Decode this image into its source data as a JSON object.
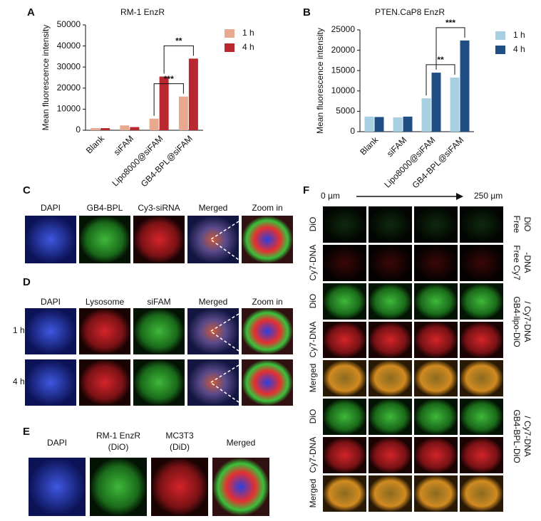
{
  "chart_data": [
    {
      "type": "bar",
      "panel": "A",
      "title": "RM-1 EnzR",
      "y_label": "Mean fluorescence intensity",
      "categories": [
        "Blank",
        "siFAM",
        "Lipo8000@siFAM",
        "GB4-BPL@siFAM"
      ],
      "series": [
        {
          "name": "1 h",
          "color": "#e8a98f",
          "values": [
            1000,
            2300,
            5500,
            16000
          ]
        },
        {
          "name": "4 h",
          "color": "#b8282e",
          "values": [
            1000,
            1500,
            25500,
            34000
          ]
        }
      ],
      "ylim": [
        0,
        50000
      ],
      "yticks": [
        0,
        10000,
        20000,
        30000,
        40000,
        50000
      ],
      "annotations": [
        "***",
        "**"
      ]
    },
    {
      "type": "bar",
      "panel": "B",
      "title": "PTEN.CaP8 EnzR",
      "y_label": "Mean fluorescence intensity",
      "categories": [
        "Blank",
        "siFAM",
        "Lipo8000@siFAM",
        "GB4-BPL@siFAM"
      ],
      "series": [
        {
          "name": "1 h",
          "color": "#a9cfe3",
          "values": [
            3700,
            3500,
            8200,
            13300
          ]
        },
        {
          "name": "4 h",
          "color": "#1f4e85",
          "values": [
            3600,
            3700,
            14500,
            22400
          ]
        }
      ],
      "ylim": [
        0,
        25000
      ],
      "yticks": [
        0,
        5000,
        10000,
        15000,
        20000,
        25000
      ],
      "annotations": [
        "**",
        "***"
      ]
    }
  ],
  "panels": {
    "C": {
      "label": "C",
      "headers": [
        "DAPI",
        "GB4-BPL",
        "Cy3-siRNA",
        "Merged",
        "Zoom in"
      ]
    },
    "D": {
      "label": "D",
      "headers": [
        "DAPI",
        "Lysosome",
        "siFAM",
        "Merged",
        "Zoom in"
      ],
      "rows": [
        "1 h",
        "4 h"
      ]
    },
    "E": {
      "label": "E",
      "headers": [
        [
          "DAPI"
        ],
        [
          "RM-1 EnzR",
          "(DiO)"
        ],
        [
          "MC3T3",
          "(DiD)"
        ],
        [
          "Merged"
        ]
      ]
    },
    "F": {
      "label": "F",
      "scale_start": "0 µm",
      "scale_end": "250 µm",
      "channels": [
        "DiO",
        "Cy7-DNA",
        "DiO",
        "Cy7-DNA",
        "Merged",
        "DiO",
        "Cy7-DNA",
        "Merged"
      ],
      "groups": [
        [
          "Free",
          "DiO"
        ],
        [
          "Free Cy7",
          "-DNA"
        ],
        [
          "GB4-lipo-DiO",
          "/ Cy7-DNA"
        ],
        [
          "GB4-BPL-DiO",
          "/ Cy7-DNA"
        ]
      ]
    }
  }
}
